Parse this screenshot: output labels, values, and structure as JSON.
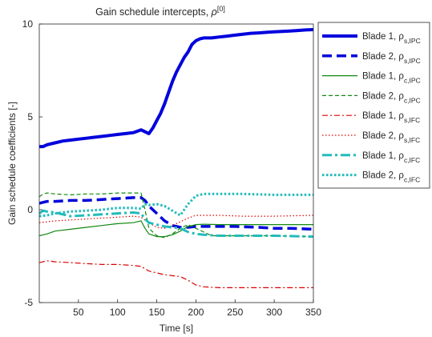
{
  "chart_data": {
    "type": "line",
    "title_main": "Gain schedule intercepts, ",
    "title_symbol": "ρ",
    "title_sup": "[0]",
    "xlabel": "Time [s]",
    "ylabel": "Gain schedule coefficients [-]",
    "xlim": [
      0,
      350
    ],
    "ylim": [
      -5,
      10
    ],
    "xticks": [
      50,
      100,
      150,
      200,
      250,
      300,
      350
    ],
    "yticks": [
      -5,
      0,
      5,
      10
    ],
    "grid": false,
    "legend_position": "outside-top-right",
    "series": [
      {
        "name": "Blade 1, ρ",
        "sub": "s,IPC",
        "color": "#0000dd",
        "width": 4,
        "dash": "",
        "x": [
          0,
          5,
          10,
          20,
          30,
          40,
          50,
          60,
          70,
          80,
          90,
          100,
          110,
          120,
          130,
          135,
          140,
          145,
          150,
          155,
          160,
          165,
          170,
          175,
          180,
          185,
          190,
          195,
          200,
          205,
          210,
          220,
          230,
          240,
          250,
          260,
          270,
          280,
          290,
          300,
          310,
          320,
          330,
          340,
          350
        ],
        "y": [
          3.4,
          3.4,
          3.5,
          3.6,
          3.7,
          3.75,
          3.8,
          3.85,
          3.9,
          3.95,
          4.0,
          4.05,
          4.1,
          4.15,
          4.3,
          4.2,
          4.1,
          4.4,
          4.8,
          5.2,
          5.7,
          6.3,
          6.9,
          7.4,
          7.8,
          8.2,
          8.5,
          8.9,
          9.1,
          9.2,
          9.25,
          9.25,
          9.3,
          9.35,
          9.4,
          9.45,
          9.5,
          9.52,
          9.55,
          9.58,
          9.6,
          9.62,
          9.65,
          9.68,
          9.7
        ]
      },
      {
        "name": "Blade 2, ρ",
        "sub": "s,IPC",
        "color": "#0000dd",
        "width": 3.5,
        "dash": "12 6",
        "x": [
          0,
          10,
          20,
          40,
          60,
          80,
          100,
          120,
          130,
          135,
          140,
          150,
          160,
          170,
          180,
          190,
          200,
          220,
          250,
          280,
          300,
          320,
          350
        ],
        "y": [
          0.35,
          0.45,
          0.45,
          0.5,
          0.5,
          0.55,
          0.6,
          0.65,
          0.65,
          0.5,
          0.2,
          -0.2,
          -0.6,
          -0.85,
          -0.95,
          -0.95,
          -0.9,
          -0.9,
          -0.9,
          -0.95,
          -1.0,
          -1.0,
          -1.05
        ]
      },
      {
        "name": "Blade 1, ρ",
        "sub": "c,IPC",
        "color": "#118811",
        "width": 1.2,
        "dash": "",
        "x": [
          0,
          10,
          20,
          40,
          60,
          80,
          100,
          120,
          130,
          135,
          140,
          150,
          160,
          170,
          180,
          190,
          200,
          210,
          230,
          260,
          300,
          350
        ],
        "y": [
          -1.4,
          -1.3,
          -1.15,
          -1.05,
          -0.95,
          -0.85,
          -0.75,
          -0.7,
          -0.6,
          -1.0,
          -1.3,
          -1.45,
          -1.45,
          -1.35,
          -1.15,
          -0.9,
          -0.8,
          -0.78,
          -0.8,
          -0.8,
          -0.8,
          -0.8
        ]
      },
      {
        "name": "Blade 2, ρ",
        "sub": "c,IPC",
        "color": "#118811",
        "width": 1.2,
        "dash": "5 3",
        "x": [
          0,
          5,
          10,
          20,
          40,
          60,
          80,
          100,
          120,
          130,
          135,
          140,
          150,
          160,
          170,
          180,
          190,
          200,
          220,
          260,
          300,
          350
        ],
        "y": [
          0.7,
          0.85,
          0.9,
          0.85,
          0.8,
          0.85,
          0.85,
          0.9,
          0.9,
          0.9,
          0.0,
          -1.0,
          -1.4,
          -1.5,
          -1.3,
          -1.0,
          -0.8,
          -1.0,
          -1.4,
          -1.4,
          -1.4,
          -1.45
        ]
      },
      {
        "name": "Blade 1, ρ",
        "sub": "s,IFC",
        "color": "#dd0000",
        "width": 1.2,
        "dash": "7 3 2 3",
        "x": [
          0,
          10,
          20,
          40,
          60,
          80,
          100,
          120,
          130,
          140,
          150,
          160,
          170,
          180,
          190,
          200,
          210,
          230,
          260,
          300,
          350
        ],
        "y": [
          -2.85,
          -2.75,
          -2.8,
          -2.85,
          -2.9,
          -2.95,
          -2.95,
          -3.0,
          -3.05,
          -3.3,
          -3.4,
          -3.5,
          -3.55,
          -3.6,
          -3.8,
          -4.05,
          -4.15,
          -4.2,
          -4.2,
          -4.2,
          -4.2
        ]
      },
      {
        "name": "Blade 2, ρ",
        "sub": "s,IFC",
        "color": "#dd0000",
        "width": 1.2,
        "dash": "1.5 2.5",
        "x": [
          0,
          10,
          20,
          40,
          60,
          80,
          100,
          120,
          130,
          140,
          150,
          160,
          170,
          180,
          190,
          200,
          210,
          230,
          260,
          300,
          350
        ],
        "y": [
          -0.7,
          -0.65,
          -0.6,
          -0.55,
          -0.5,
          -0.45,
          -0.4,
          -0.35,
          -0.4,
          -0.7,
          -0.95,
          -1.0,
          -0.85,
          -0.65,
          -0.45,
          -0.3,
          -0.3,
          -0.3,
          -0.35,
          -0.35,
          -0.3
        ]
      },
      {
        "name": "Blade 1, ρ",
        "sub": "c,IFC",
        "color": "#22bbbb",
        "width": 3,
        "dash": "12 4 3 4",
        "x": [
          0,
          5,
          10,
          20,
          30,
          40,
          60,
          80,
          100,
          120,
          130,
          135,
          140,
          150,
          160,
          170,
          180,
          190,
          200,
          210,
          230,
          260,
          300,
          350
        ],
        "y": [
          -0.2,
          -0.05,
          -0.1,
          -0.15,
          -0.25,
          -0.35,
          -0.3,
          -0.25,
          -0.2,
          -0.15,
          -0.2,
          -0.5,
          -0.7,
          -0.8,
          -0.9,
          -0.95,
          -1.0,
          -1.2,
          -1.3,
          -1.35,
          -1.4,
          -1.4,
          -1.4,
          -1.45
        ]
      },
      {
        "name": "Blade 2, ρ",
        "sub": "c,IFC",
        "color": "#22bbbb",
        "width": 3,
        "dash": "2.5 2.5",
        "x": [
          0,
          10,
          20,
          40,
          60,
          80,
          100,
          120,
          130,
          135,
          140,
          150,
          160,
          170,
          180,
          190,
          200,
          210,
          230,
          260,
          300,
          350
        ],
        "y": [
          -0.35,
          -0.3,
          -0.2,
          -0.1,
          -0.05,
          0.0,
          0.1,
          0.1,
          0.05,
          0.3,
          0.25,
          0.3,
          0.2,
          -0.05,
          -0.3,
          0.3,
          0.75,
          0.85,
          0.85,
          0.85,
          0.8,
          0.8
        ]
      }
    ]
  }
}
